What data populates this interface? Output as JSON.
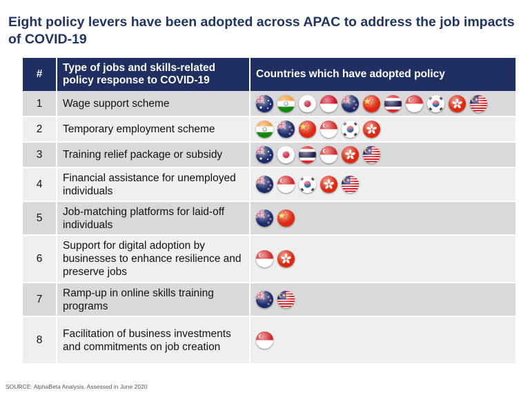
{
  "title": "Eight policy levers have been adopted across APAC to address the job impacts of COVID-19",
  "table": {
    "headers": [
      "#",
      "Type of jobs and skills-related policy response to COVID-19",
      "Countries which have adopted policy"
    ],
    "rows": [
      {
        "num": "1",
        "policy": "Wage support scheme",
        "flags": [
          "australia",
          "india",
          "japan",
          "indonesia",
          "new-zealand",
          "china",
          "thailand",
          "singapore",
          "south-korea",
          "hong-kong",
          "malaysia"
        ]
      },
      {
        "num": "2",
        "policy": "Temporary employment scheme",
        "flags": [
          "india",
          "new-zealand",
          "china",
          "singapore",
          "south-korea",
          "hong-kong"
        ]
      },
      {
        "num": "3",
        "policy": "Training relief package or subsidy",
        "flags": [
          "australia",
          "japan",
          "thailand",
          "singapore",
          "hong-kong",
          "malaysia"
        ]
      },
      {
        "num": "4",
        "policy": "Financial assistance for unemployed individuals",
        "flags": [
          "new-zealand",
          "singapore",
          "south-korea",
          "hong-kong",
          "malaysia"
        ]
      },
      {
        "num": "5",
        "policy": "Job-matching platforms for laid-off individuals",
        "flags": [
          "new-zealand",
          "china"
        ]
      },
      {
        "num": "6",
        "policy": "Support for digital adoption by businesses to enhance resilience and preserve jobs",
        "flags": [
          "singapore",
          "hong-kong"
        ]
      },
      {
        "num": "7",
        "policy": "Ramp-up in online skills training programs",
        "flags": [
          "new-zealand",
          "malaysia"
        ]
      },
      {
        "num": "8",
        "policy": "Facilitation of business investments and commitments on job creation",
        "flags": [
          "singapore"
        ]
      }
    ]
  },
  "source": "SOURCE: AlphaBeta Analysis. Assessed in June 2020"
}
